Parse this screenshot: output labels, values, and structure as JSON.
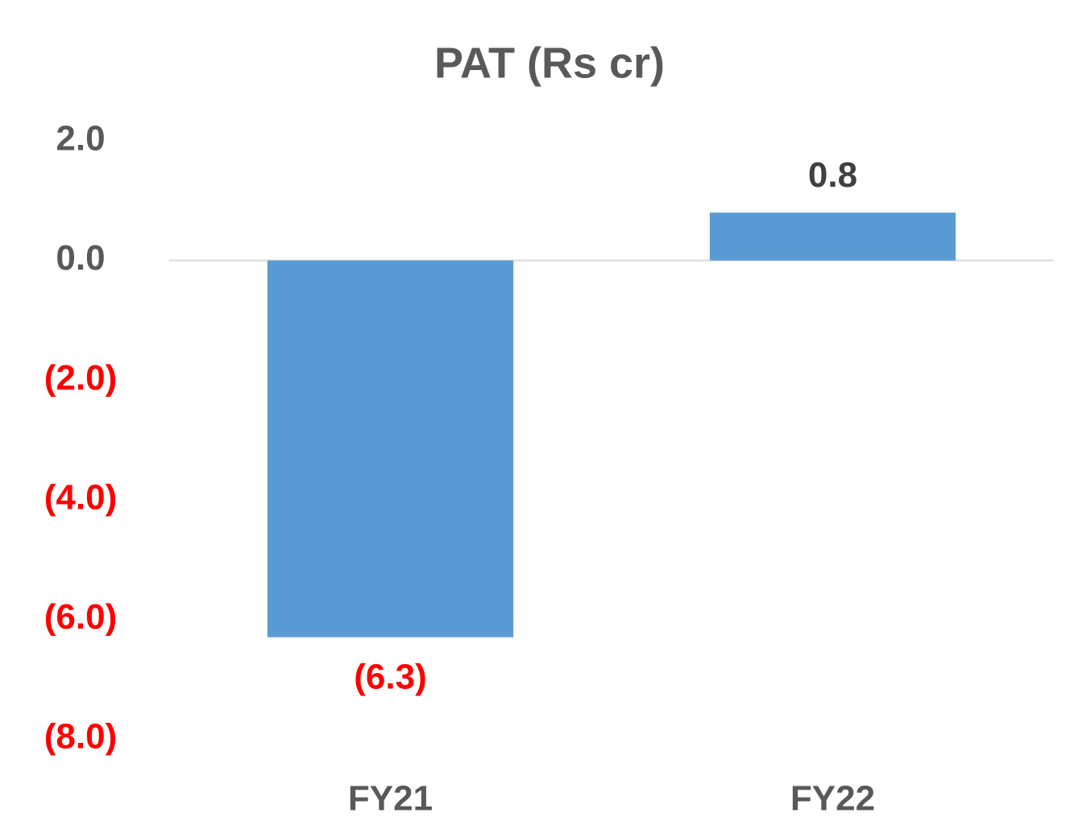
{
  "chart_data": {
    "type": "bar",
    "title": "PAT (Rs cr)",
    "categories": [
      "FY21",
      "FY22"
    ],
    "values": [
      -6.3,
      0.8
    ],
    "value_labels": [
      "(6.3)",
      "0.8"
    ],
    "color": "#5b9bd5",
    "negative_label_color": "#ff0000",
    "label_color": "#595959",
    "ylim": [
      -8,
      2
    ],
    "yticks": [
      {
        "value": 2,
        "label": "2.0"
      },
      {
        "value": 0,
        "label": "0.0"
      },
      {
        "value": -2,
        "label": "(2.0)"
      },
      {
        "value": -4,
        "label": "(4.0)"
      },
      {
        "value": -6,
        "label": "(6.0)"
      },
      {
        "value": -8,
        "label": "(8.0)"
      }
    ],
    "grid": false
  }
}
